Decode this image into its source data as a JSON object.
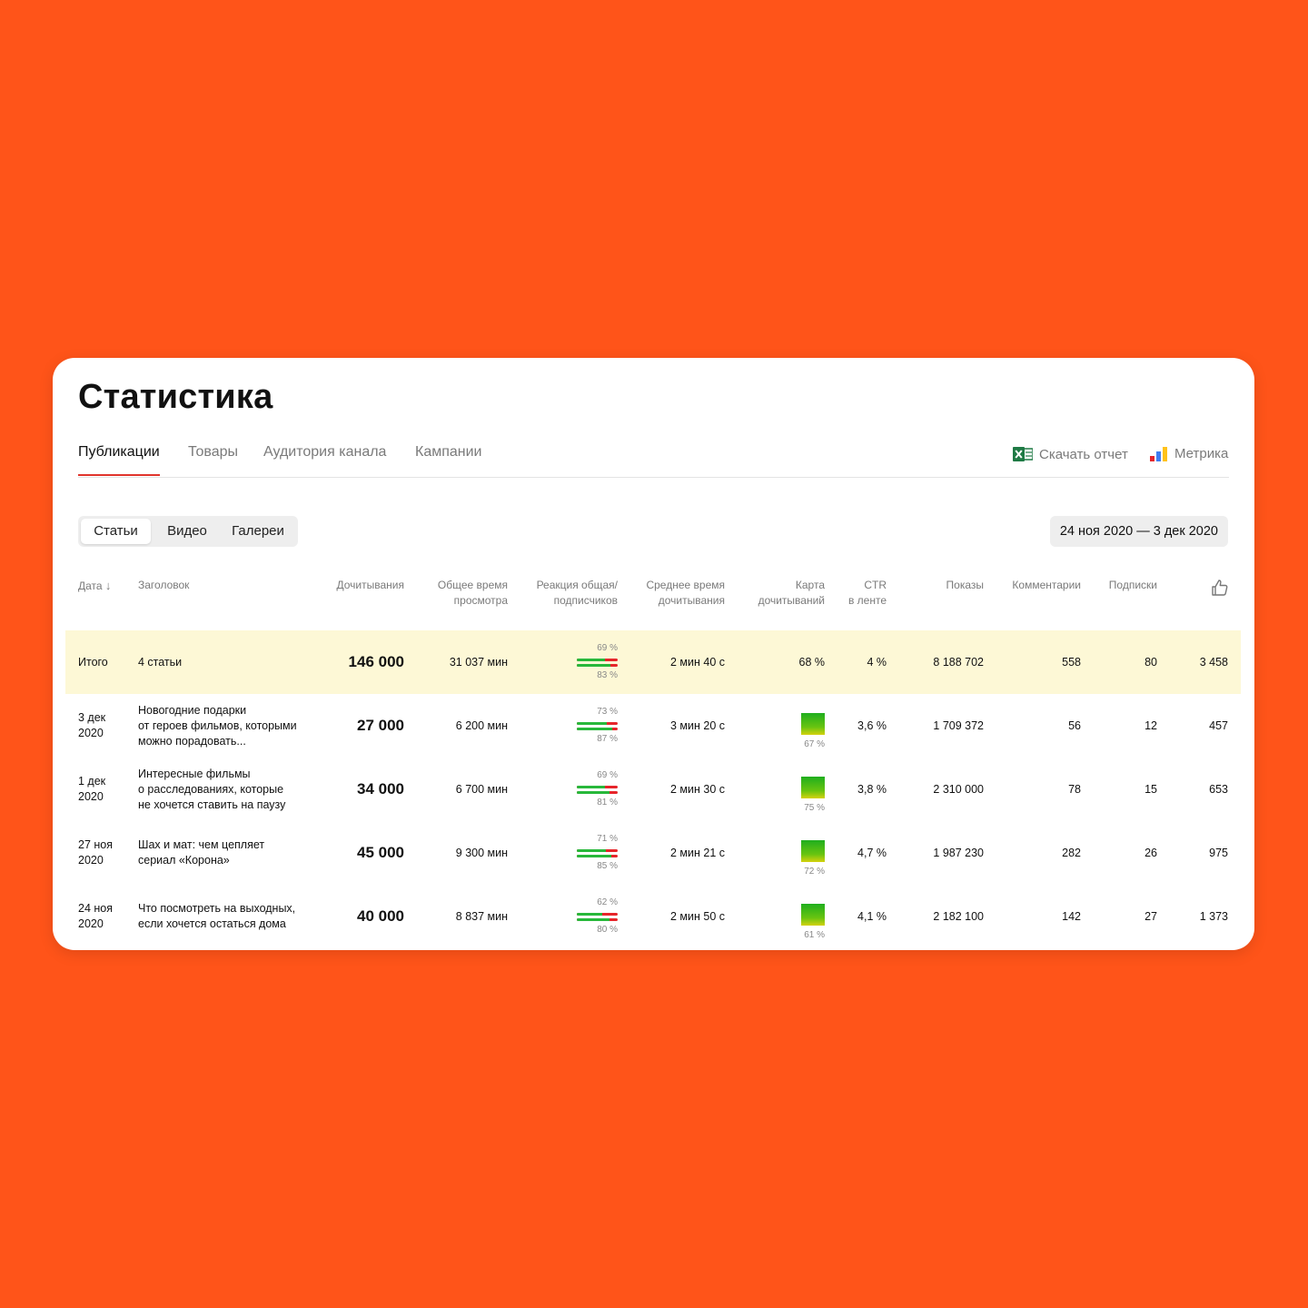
{
  "page": {
    "title": "Статистика"
  },
  "tabs": [
    {
      "label": "Публикации",
      "active": true
    },
    {
      "label": "Товары",
      "active": false
    },
    {
      "label": "Аудитория канала",
      "active": false
    },
    {
      "label": "Кампании",
      "active": false
    }
  ],
  "actions": {
    "download": "Скачать отчет",
    "metrika": "Метрика"
  },
  "segments": [
    {
      "label": "Статьи",
      "active": true
    },
    {
      "label": "Видео",
      "active": false
    },
    {
      "label": "Галереи",
      "active": false
    }
  ],
  "date_range": "24 ноя 2020 — 3 дек 2020",
  "columns": {
    "date": "Дата",
    "title": "Заголовок",
    "reads": "Дочитывания",
    "total_time": [
      "Общее время",
      "просмотра"
    ],
    "reaction": [
      "Реакция общая/",
      "подписчиков"
    ],
    "avg_time": [
      "Среднее время",
      "дочитывания"
    ],
    "read_map": [
      "Карта",
      "дочитываний"
    ],
    "ctr": [
      "CTR",
      "в ленте"
    ],
    "views": "Показы",
    "comments": "Комментарии",
    "subs": "Подписки",
    "likes_icon": "thumbs-up-icon"
  },
  "total": {
    "date": "Итого",
    "title": "4 статьи",
    "reads": "146 000",
    "total_time": "31 037 мин",
    "reaction_general": "69 %",
    "reaction_subs": "83 %",
    "avg_time": "2 мин 40 с",
    "read_map": "68 %",
    "ctr": "4 %",
    "views": "8 188 702",
    "comments": "558",
    "subs": "80",
    "likes": "3 458"
  },
  "rows": [
    {
      "date": [
        "3 дек",
        "2020"
      ],
      "title": [
        "Новогодние подарки",
        "от героев фильмов, которыми",
        "можно порадовать..."
      ],
      "reads": "27 000",
      "total_time": "6 200 мин",
      "reaction_general": "73 %",
      "reaction_subs": "87 %",
      "avg_time": "3 мин 20 с",
      "read_map": "67 %",
      "ctr": "3,6 %",
      "views": "1 709 372",
      "comments": "56",
      "subs": "12",
      "likes": "457"
    },
    {
      "date": [
        "1 дек",
        "2020"
      ],
      "title": [
        "Интересные фильмы",
        "о расследованиях, которые",
        "не хочется ставить на паузу"
      ],
      "reads": "34 000",
      "total_time": "6 700 мин",
      "reaction_general": "69 %",
      "reaction_subs": "81 %",
      "avg_time": "2 мин 30 с",
      "read_map": "75 %",
      "ctr": "3,8 %",
      "views": "2 310 000",
      "comments": "78",
      "subs": "15",
      "likes": "653"
    },
    {
      "date": [
        "27 ноя",
        "2020"
      ],
      "title": [
        "Шах и мат: чем цепляет",
        "сериал «Корона»"
      ],
      "reads": "45 000",
      "total_time": "9 300 мин",
      "reaction_general": "71 %",
      "reaction_subs": "85 %",
      "avg_time": "2 мин 21 с",
      "read_map": "72 %",
      "ctr": "4,7 %",
      "views": "1 987 230",
      "comments": "282",
      "subs": "26",
      "likes": "975"
    },
    {
      "date": [
        "24 ноя",
        "2020"
      ],
      "title": [
        "Что посмотреть на выходных,",
        "если хочется остаться дома"
      ],
      "reads": "40 000",
      "total_time": "8 837 мин",
      "reaction_general": "62 %",
      "reaction_subs": "80 %",
      "avg_time": "2 мин 50 с",
      "read_map": "61 %",
      "ctr": "4,1 %",
      "views": "2 182 100",
      "comments": "142",
      "subs": "27",
      "likes": "1 373"
    }
  ],
  "colors": {
    "background": "#ff5419",
    "accent": "#e0342c",
    "total_row": "#fdf8d6",
    "bar_green": "#27b83a",
    "bar_red": "#e6252a"
  }
}
